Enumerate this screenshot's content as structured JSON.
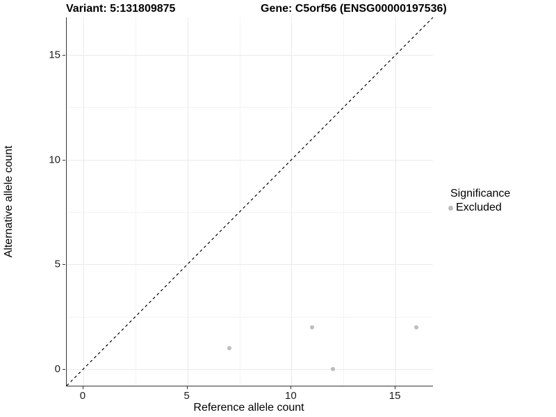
{
  "header": {
    "title_left": "Variant: 5:131809875",
    "title_right": "Gene: C5orf56 (ENSG00000197536)"
  },
  "chart_data": {
    "type": "scatter",
    "title": "Variant: 5:131809875 | Gene: C5orf56 (ENSG00000197536)",
    "xlabel": "Reference allele count",
    "ylabel": "Alternative allele count",
    "xlim": [
      -0.8,
      16.8
    ],
    "ylim": [
      -0.8,
      16.8
    ],
    "x_ticks": [
      0,
      5,
      10,
      15
    ],
    "y_ticks": [
      0,
      5,
      10,
      15
    ],
    "minor_gridlines": [
      2.5,
      7.5,
      12.5
    ],
    "grid": true,
    "series": [
      {
        "name": "Excluded",
        "color": "#bdbdbd",
        "points": [
          {
            "x": 7,
            "y": 1
          },
          {
            "x": 11,
            "y": 2
          },
          {
            "x": 12,
            "y": 0
          },
          {
            "x": 16,
            "y": 2
          }
        ]
      }
    ],
    "reference_line": {
      "equation": "y = x",
      "style": "dashed",
      "color": "#000000"
    },
    "legend": {
      "position": "right",
      "title": "Significance",
      "entries": [
        {
          "label": "Excluded",
          "color": "#bdbdbd"
        }
      ]
    }
  },
  "colors": {
    "background": "#ffffff",
    "axis_line": "#333333",
    "major_grid": "#e9e9e9",
    "minor_grid": "#f3f3f3",
    "tick_text": "#1a1a1a",
    "point_excluded": "#bdbdbd"
  }
}
